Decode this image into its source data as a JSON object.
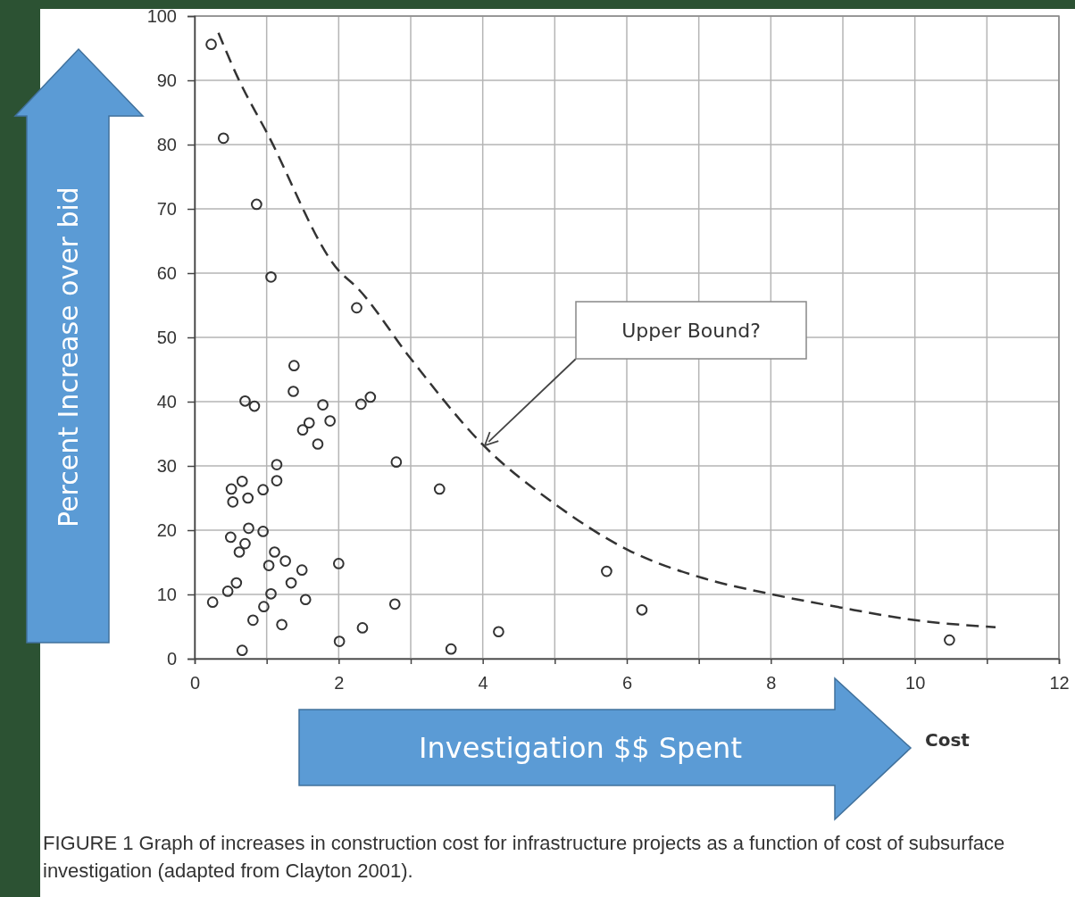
{
  "chart_data": {
    "type": "scatter",
    "xlabel": "Investigation $$ Spent",
    "ylabel": "Percent Increase over bid",
    "xlim": [
      0,
      12
    ],
    "xticks": [
      0,
      {
        "value": 1,
        "label": null
      },
      2,
      {
        "value": 3,
        "label": null
      },
      4,
      {
        "value": 5,
        "label": null
      },
      6,
      {
        "value": 7,
        "label": null
      },
      8,
      {
        "value": 9,
        "label": null
      },
      10,
      {
        "value": 11,
        "label": null
      },
      12
    ],
    "ylim": [
      0,
      100
    ],
    "yticks": [
      0,
      10,
      20,
      30,
      40,
      50,
      60,
      70,
      80,
      90,
      100
    ],
    "grid": true,
    "marker": "circle",
    "series": [
      {
        "color": "#333333",
        "x": [
          0.23,
          0.4,
          0.86,
          1.06,
          2.25,
          1.38,
          1.37,
          0.7,
          0.83,
          1.78,
          2.31,
          2.44,
          1.59,
          1.5,
          1.88,
          1.71,
          1.14,
          2.8,
          3.4,
          1.14,
          0.66,
          0.51,
          0.95,
          0.74,
          0.53,
          0.75,
          0.95,
          0.5,
          0.7,
          0.62,
          1.11,
          1.26,
          1.03,
          1.49,
          2.0,
          1.34,
          0.58,
          0.46,
          1.06,
          0.25,
          1.54,
          2.78,
          0.96,
          0.81,
          1.21,
          2.33,
          2.01,
          0.66,
          3.56,
          4.22,
          5.72,
          6.21,
          10.48
        ],
        "values": [
          95.6,
          81,
          70.7,
          59.4,
          54.6,
          45.6,
          41.6,
          40.1,
          39.3,
          39.5,
          39.6,
          40.7,
          36.7,
          35.6,
          37.0,
          33.4,
          30.2,
          30.6,
          26.4,
          27.7,
          27.6,
          26.4,
          26.3,
          25.0,
          24.4,
          20.3,
          19.8,
          18.9,
          17.9,
          16.6,
          16.6,
          15.2,
          14.5,
          13.8,
          14.8,
          11.8,
          11.8,
          10.5,
          10.1,
          8.8,
          9.2,
          8.5,
          8.1,
          6.0,
          5.3,
          4.8,
          2.7,
          1.3,
          1.5,
          4.2,
          13.6,
          7.6,
          2.9
        ]
      },
      {
        "type": "line",
        "color": "#333333",
        "line_style": "dashed",
        "marker": "none",
        "x": [
          0.33,
          0.6,
          1.01,
          2.0,
          2.25,
          3.0,
          4.01,
          5.01,
          6.02,
          7.04,
          7.98,
          8.95,
          10.0,
          11.12
        ],
        "values": [
          97.4,
          90.4,
          81.7,
          60.4,
          57.8,
          46.7,
          33.2,
          24.0,
          16.9,
          12.6,
          10.1,
          8.0,
          6.0,
          4.9
        ]
      }
    ],
    "annotations": [
      "Upper Bound?",
      "Cost",
      "FIGURE 1  Graph of increases in construction cost for infrastructure projects as a function of cost of subsurface investigation (adapted from Clayton 2001)."
    ]
  }
}
